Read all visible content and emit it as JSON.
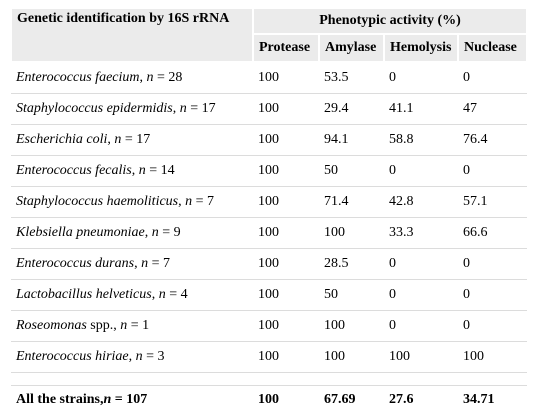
{
  "header": {
    "first": "Genetic identification by 16S rRNA",
    "column_group": "Phenotypic activity (%)",
    "columns": [
      "Protease",
      "Amylase",
      "Hemolysis",
      "Nuclease"
    ]
  },
  "table": {
    "rows": [
      {
        "label": [
          {
            "text": "Enterococcus faecium",
            "italic": true
          },
          {
            "text": ", "
          },
          {
            "text": "n",
            "italic": true
          },
          {
            "text": " = 28"
          }
        ],
        "values": [
          100,
          53.5,
          0,
          0
        ]
      },
      {
        "label": [
          {
            "text": "Staphylococcus epidermidis",
            "italic": true
          },
          {
            "text": ", "
          },
          {
            "text": "n",
            "italic": true
          },
          {
            "text": " = 17"
          }
        ],
        "values": [
          100,
          29.4,
          41.1,
          47
        ]
      },
      {
        "label": [
          {
            "text": "Escherichia coli",
            "italic": true
          },
          {
            "text": ", "
          },
          {
            "text": "n",
            "italic": true
          },
          {
            "text": " = 17"
          }
        ],
        "values": [
          100,
          94.1,
          58.8,
          76.4
        ]
      },
      {
        "label": [
          {
            "text": "Enterococcus fecalis",
            "italic": true
          },
          {
            "text": ", "
          },
          {
            "text": "n",
            "italic": true
          },
          {
            "text": " = 14"
          }
        ],
        "values": [
          100,
          50,
          0,
          0
        ]
      },
      {
        "label": [
          {
            "text": "Staphylococcus haemoliticus",
            "italic": true
          },
          {
            "text": ", "
          },
          {
            "text": "n",
            "italic": true
          },
          {
            "text": " = 7"
          }
        ],
        "values": [
          100,
          71.4,
          42.8,
          57.1
        ]
      },
      {
        "label": [
          {
            "text": "Klebsiella pneumoniae",
            "italic": true
          },
          {
            "text": ", "
          },
          {
            "text": "n",
            "italic": true
          },
          {
            "text": " = 9"
          }
        ],
        "values": [
          100,
          100,
          33.3,
          66.6
        ]
      },
      {
        "label": [
          {
            "text": "Enterococcus durans",
            "italic": true
          },
          {
            "text": ", "
          },
          {
            "text": "n",
            "italic": true
          },
          {
            "text": " = 7"
          }
        ],
        "values": [
          100,
          28.5,
          0,
          0
        ]
      },
      {
        "label": [
          {
            "text": "Lactobacillus helveticus",
            "italic": true
          },
          {
            "text": ", "
          },
          {
            "text": "n",
            "italic": true
          },
          {
            "text": " = 4"
          }
        ],
        "values": [
          100,
          50,
          0,
          0
        ]
      },
      {
        "label": [
          {
            "text": "Roseomonas",
            "italic": true
          },
          {
            "text": " spp., "
          },
          {
            "text": "n",
            "italic": true
          },
          {
            "text": " = 1"
          }
        ],
        "values": [
          100,
          100,
          0,
          0
        ]
      },
      {
        "label": [
          {
            "text": "Enterococcus hiriae",
            "italic": true
          },
          {
            "text": ", "
          },
          {
            "text": "n",
            "italic": true
          },
          {
            "text": " = 3"
          }
        ],
        "values": [
          100,
          100,
          100,
          100
        ]
      }
    ],
    "total": {
      "label": [
        {
          "text": "All the strains,"
        },
        {
          "text": "n",
          "italic": true
        },
        {
          "text": " = 107"
        }
      ],
      "values": [
        100,
        67.69,
        27.6,
        34.71
      ]
    }
  }
}
